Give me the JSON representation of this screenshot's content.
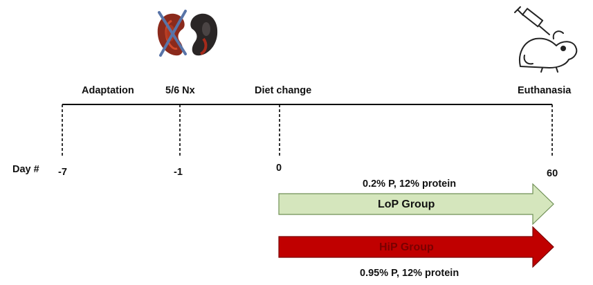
{
  "timeline": {
    "events": [
      {
        "label": "Adaptation"
      },
      {
        "label": "5/6 Nx"
      },
      {
        "label": "Diet change"
      },
      {
        "label": "Euthanasia"
      }
    ],
    "day_axis_label": "Day #",
    "day_marks": [
      {
        "label": "-7"
      },
      {
        "label": "-1"
      },
      {
        "label": "0"
      },
      {
        "label": "60"
      }
    ]
  },
  "groups": [
    {
      "name": "LoP Group",
      "diet": "0.2% P, 12% protein",
      "color": "#d5e6bd",
      "text_color": "#111111"
    },
    {
      "name": "HiP Group",
      "diet": "0.95% P, 12% protein",
      "color": "#c00000",
      "text_color": "#7a0000"
    }
  ],
  "icons": [
    {
      "name": "kidneys-crossed-icon"
    },
    {
      "name": "mouse-syringe-icon"
    }
  ]
}
